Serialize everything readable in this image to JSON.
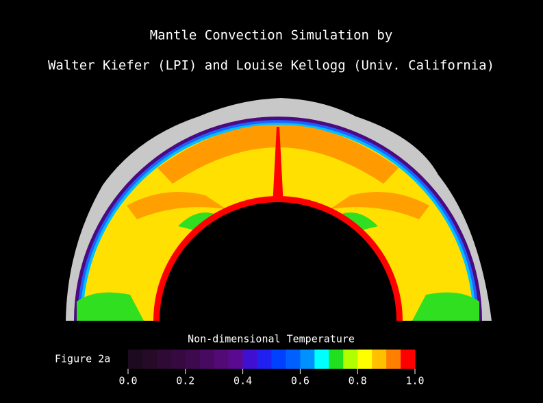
{
  "title": [
    "Mantle Convection Simulation by",
    "Walter Kiefer (LPI) and Louise Kellogg (Univ. California)"
  ],
  "figure_label": "Figure 2a",
  "colorbar": {
    "title": "Non-dimensional Temperature",
    "range": [
      0,
      1
    ],
    "ticks": [
      {
        "value": 0,
        "label": "0.0"
      },
      {
        "value": 0.2,
        "label": "0.2"
      },
      {
        "value": 0.4,
        "label": "0.4"
      },
      {
        "value": 0.6,
        "label": "0.6"
      },
      {
        "value": 0.8,
        "label": "0.8"
      },
      {
        "value": 1,
        "label": "1.0"
      }
    ],
    "colors": [
      "#1e0a1e",
      "#260a28",
      "#2e0a34",
      "#360a40",
      "#3e0a4e",
      "#480a60",
      "#520a76",
      "#5a0a90",
      "#4010d0",
      "#2020f0",
      "#0040ff",
      "#0060ff",
      "#0090ff",
      "#00ffff",
      "#20e020",
      "#b0ff00",
      "#ffff00",
      "#ffc000",
      "#ff8000",
      "#ff0000"
    ]
  }
}
